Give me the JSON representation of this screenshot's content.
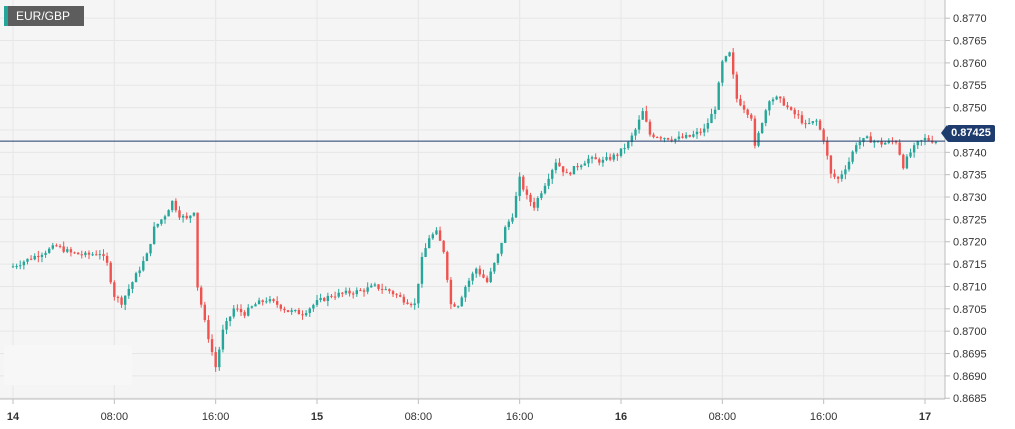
{
  "symbol": {
    "label": "EUR/GBP"
  },
  "current_price": {
    "label": "0.87425",
    "value": 0.87425
  },
  "colors": {
    "up": "#26a69a",
    "down": "#ef5350",
    "price_line": "#1f3c6e",
    "grid": "#e6e6e6"
  },
  "chart_data": {
    "type": "candlestick",
    "title": "",
    "xlabel": "",
    "ylabel": "",
    "ylim": [
      0.86855,
      0.87725
    ],
    "xlim": [
      -0.5,
      255.5
    ],
    "grid": true,
    "y_ticks": [
      "0.8770",
      "0.8765",
      "0.8760",
      "0.8755",
      "0.8750",
      "0.8745",
      "0.8740",
      "0.8735",
      "0.8730",
      "0.8725",
      "0.8720",
      "0.8715",
      "0.8710",
      "0.8705",
      "0.8700",
      "0.8695",
      "0.8690",
      "0.8685"
    ],
    "x_ticks": [
      {
        "label": "14",
        "index": 0,
        "day": true
      },
      {
        "label": "08:00",
        "index": 28,
        "day": false
      },
      {
        "label": "16:00",
        "index": 56,
        "day": false
      },
      {
        "label": "15",
        "index": 84,
        "day": true
      },
      {
        "label": "08:00",
        "index": 112,
        "day": false
      },
      {
        "label": "16:00",
        "index": 140,
        "day": false
      },
      {
        "label": "16",
        "index": 168,
        "day": true
      },
      {
        "label": "08:00",
        "index": 196,
        "day": false
      },
      {
        "label": "16:00",
        "index": 224,
        "day": false
      },
      {
        "label": "17",
        "index": 252,
        "day": true
      }
    ],
    "anchors": [
      [
        0,
        0.87145
      ],
      [
        4,
        0.8716
      ],
      [
        8,
        0.87175
      ],
      [
        12,
        0.8719
      ],
      [
        16,
        0.87175
      ],
      [
        20,
        0.8717
      ],
      [
        24,
        0.87175
      ],
      [
        26,
        0.8715
      ],
      [
        28,
        0.8708
      ],
      [
        30,
        0.87065
      ],
      [
        34,
        0.87125
      ],
      [
        37,
        0.8717
      ],
      [
        39,
        0.8723
      ],
      [
        42,
        0.8726
      ],
      [
        44,
        0.8729
      ],
      [
        46,
        0.8726
      ],
      [
        48,
        0.8725
      ],
      [
        50,
        0.8727
      ],
      [
        51,
        0.871
      ],
      [
        53,
        0.8702
      ],
      [
        56,
        0.8692
      ],
      [
        58,
        0.87
      ],
      [
        61,
        0.8705
      ],
      [
        64,
        0.8704
      ],
      [
        67,
        0.8706
      ],
      [
        70,
        0.8707
      ],
      [
        73,
        0.8706
      ],
      [
        76,
        0.87045
      ],
      [
        80,
        0.8704
      ],
      [
        84,
        0.87065
      ],
      [
        88,
        0.8708
      ],
      [
        92,
        0.87085
      ],
      [
        96,
        0.8709
      ],
      [
        100,
        0.871
      ],
      [
        104,
        0.8709
      ],
      [
        108,
        0.8707
      ],
      [
        111,
        0.8706
      ],
      [
        113,
        0.8716
      ],
      [
        115,
        0.8721
      ],
      [
        117,
        0.8722
      ],
      [
        119,
        0.8718
      ],
      [
        121,
        0.8706
      ],
      [
        123,
        0.8706
      ],
      [
        125,
        0.871
      ],
      [
        128,
        0.8714
      ],
      [
        131,
        0.8711
      ],
      [
        134,
        0.8717
      ],
      [
        136,
        0.8723
      ],
      [
        138,
        0.8726
      ],
      [
        140,
        0.8734
      ],
      [
        142,
        0.873
      ],
      [
        144,
        0.8728
      ],
      [
        147,
        0.8733
      ],
      [
        150,
        0.8738
      ],
      [
        153,
        0.8735
      ],
      [
        156,
        0.8737
      ],
      [
        159,
        0.87385
      ],
      [
        163,
        0.8738
      ],
      [
        167,
        0.87395
      ],
      [
        170,
        0.8742
      ],
      [
        172,
        0.8745
      ],
      [
        174,
        0.8749
      ],
      [
        176,
        0.8744
      ],
      [
        179,
        0.87435
      ],
      [
        183,
        0.8743
      ],
      [
        187,
        0.87435
      ],
      [
        191,
        0.8745
      ],
      [
        194,
        0.875
      ],
      [
        196,
        0.876
      ],
      [
        198,
        0.8762
      ],
      [
        200,
        0.8752
      ],
      [
        202,
        0.875
      ],
      [
        204,
        0.8748
      ],
      [
        205,
        0.8741
      ],
      [
        207,
        0.8747
      ],
      [
        209,
        0.8752
      ],
      [
        211,
        0.8752
      ],
      [
        213,
        0.8751
      ],
      [
        215,
        0.8749
      ],
      [
        217,
        0.8748
      ],
      [
        219,
        0.8746
      ],
      [
        222,
        0.8747
      ],
      [
        224,
        0.8743
      ],
      [
        226,
        0.8735
      ],
      [
        228,
        0.8734
      ],
      [
        231,
        0.8738
      ],
      [
        233,
        0.8742
      ],
      [
        236,
        0.8743
      ],
      [
        240,
        0.8742
      ],
      [
        244,
        0.87425
      ],
      [
        246,
        0.8737
      ],
      [
        248,
        0.874
      ],
      [
        250,
        0.8742
      ],
      [
        252,
        0.8743
      ],
      [
        255,
        0.87425
      ]
    ]
  }
}
